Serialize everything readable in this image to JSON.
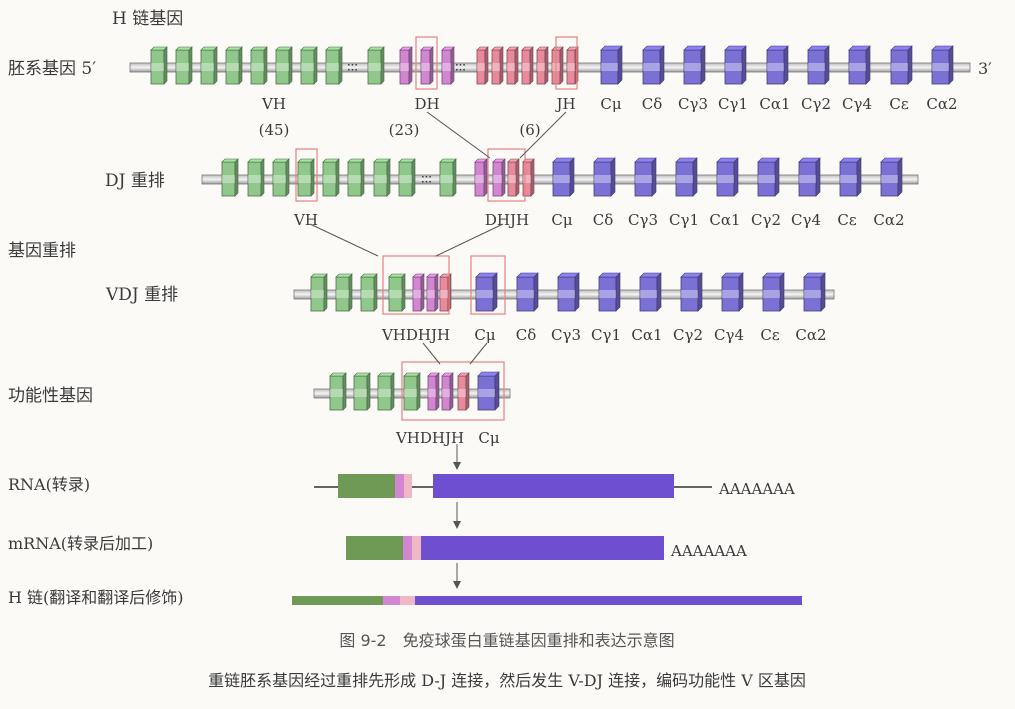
{
  "header": {
    "title": "H 链基因"
  },
  "germline": {
    "label": "胚系基因 5′",
    "end_label": "3′",
    "gene_labels": {
      "vh": "VH",
      "dh": "DH",
      "jh": "JH",
      "c": [
        "Cμ",
        "Cδ",
        "Cγ3",
        "Cγ1",
        "Cα1",
        "Cγ2",
        "Cγ4",
        "Cε",
        "Cα2"
      ]
    },
    "counts": {
      "vh": "(45)",
      "dh": "(23)",
      "jh": "(6)"
    }
  },
  "dj": {
    "label": "DJ 重排",
    "gene_labels": {
      "vh": "VH",
      "dhjh": "DHJH",
      "c": [
        "Cμ",
        "Cδ",
        "Cγ3",
        "Cγ1",
        "Cα1",
        "Cγ2",
        "Cγ4",
        "Cε",
        "Cα2"
      ]
    }
  },
  "section_label": "基因重排",
  "vdj": {
    "label": "VDJ 重排",
    "gene_labels": {
      "vhdhjh": "VHDHJH",
      "c": [
        "Cμ",
        "Cδ",
        "Cγ3",
        "Cγ1",
        "Cα1",
        "Cγ2",
        "Cγ4",
        "Cε",
        "Cα2"
      ]
    }
  },
  "functional": {
    "label": "功能性基因",
    "gene_labels": {
      "vhdhjh": "VHDHJH",
      "cmu": "Cμ"
    }
  },
  "rna": {
    "label": "RNA(转录)",
    "polya": "AAAAAAA"
  },
  "mrna": {
    "label": "mRNA(转录后加工)",
    "polya": "AAAAAAA"
  },
  "hchain": {
    "label": "H 链(翻译和翻译后修饰)"
  },
  "caption": {
    "figure": "图 9-2　免疫球蛋白重链基因重排和表达示意图",
    "description": "重链胚系基因经过重排先形成 D-J 连接，然后发生 V-DJ 连接，编码功能性 V 区基因"
  },
  "colors": {
    "v": "#8fc88a",
    "d": "#d286d2",
    "j": "#e88a9c",
    "c": "#7b70d4",
    "highlight": "#e88080",
    "chromosome": "#8a8a8a"
  }
}
